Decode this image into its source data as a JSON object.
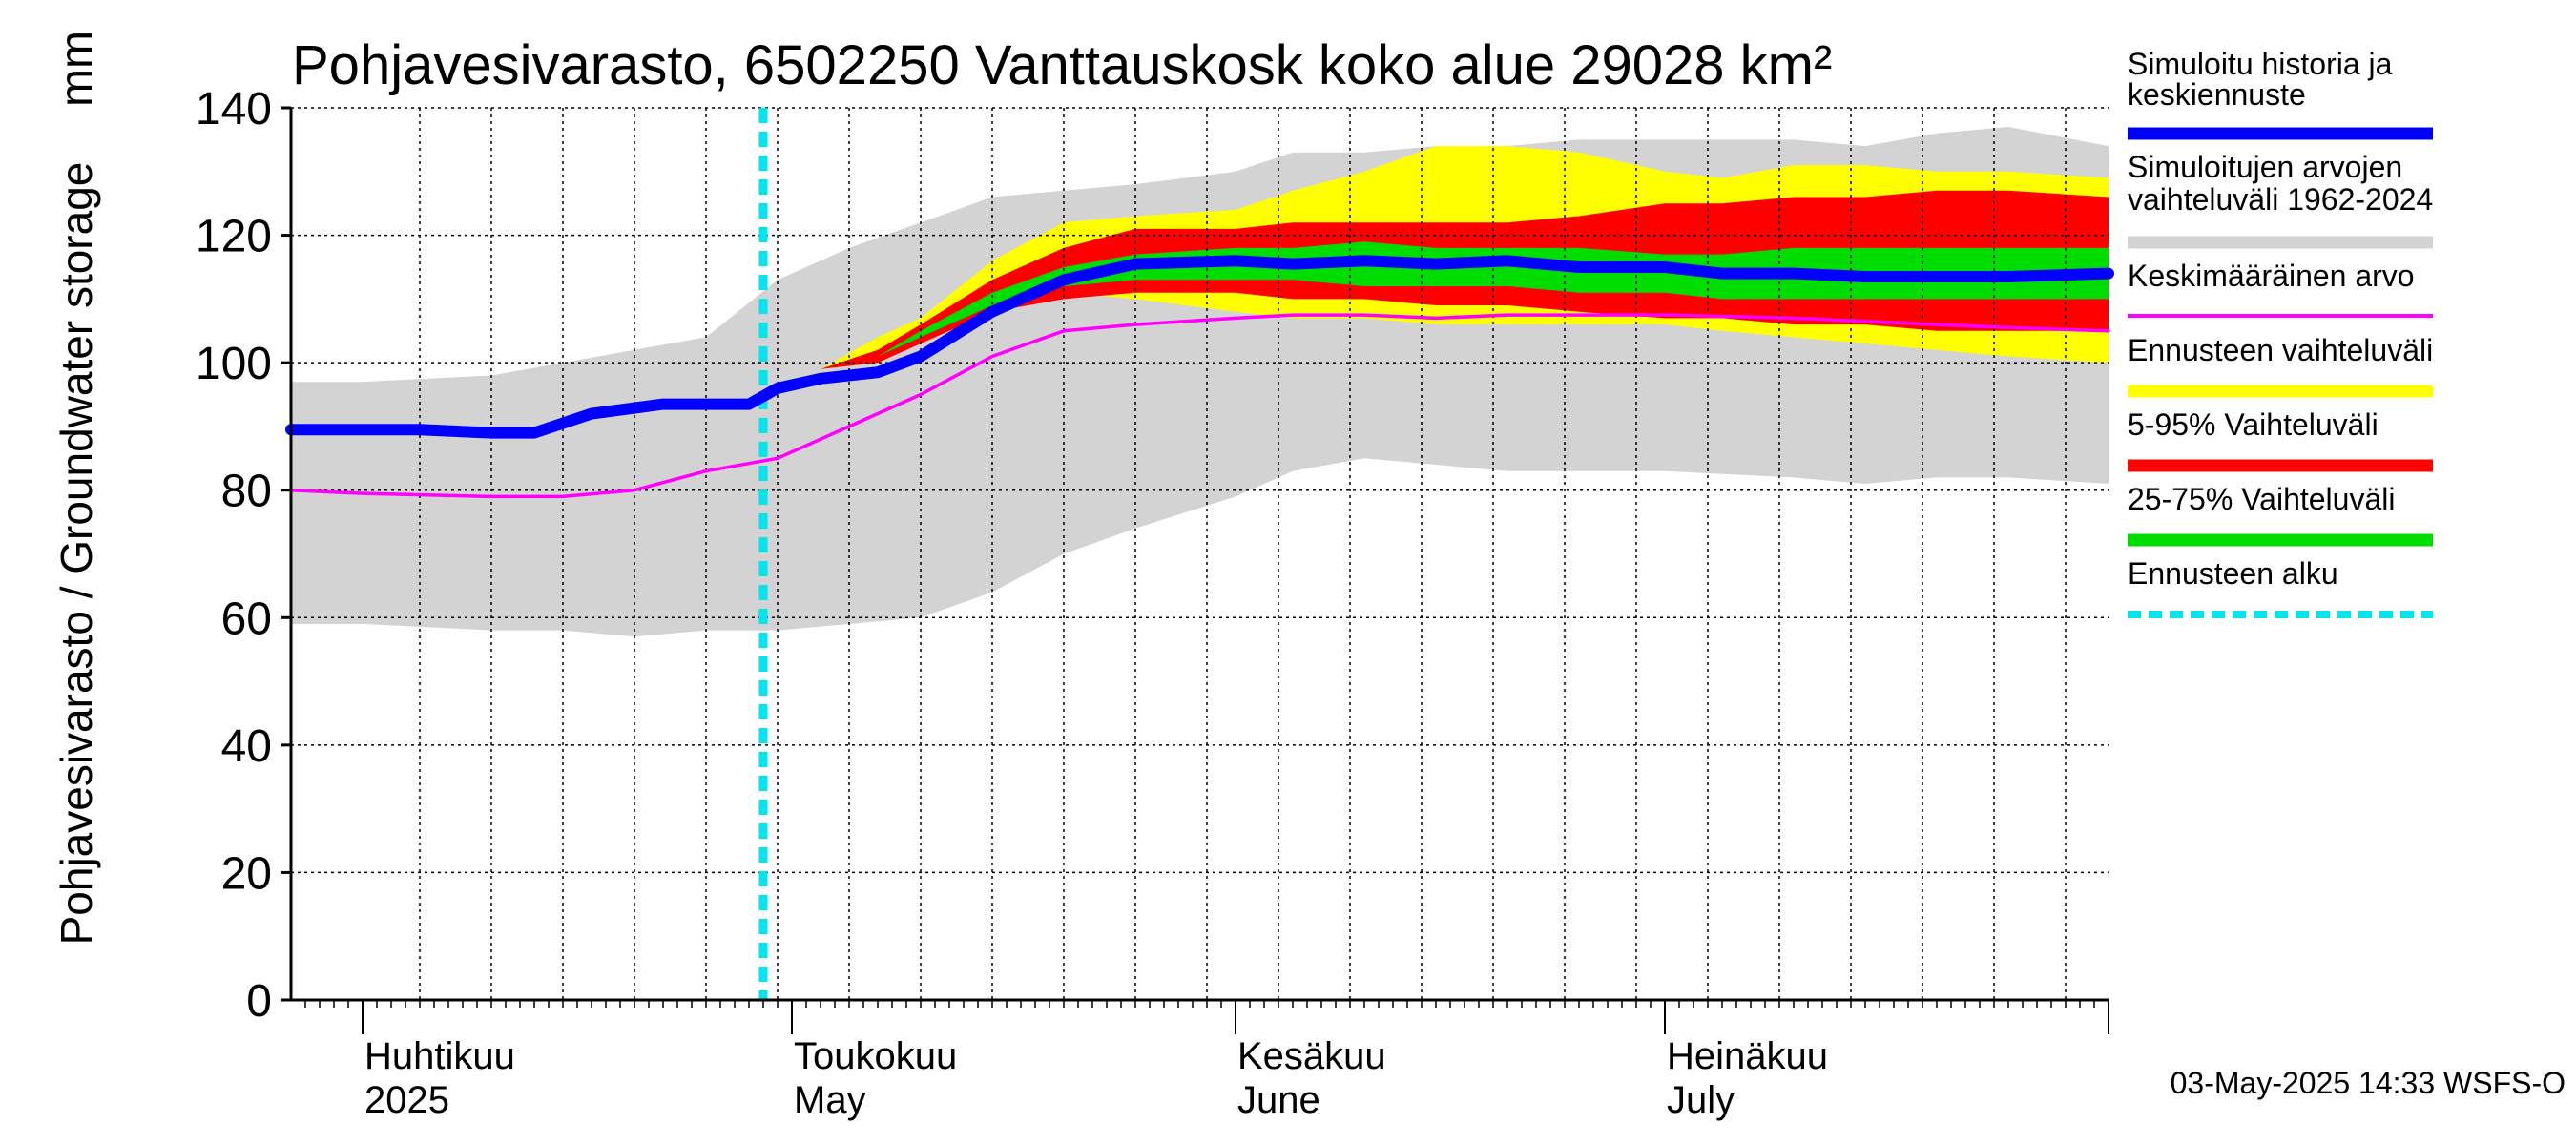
{
  "chart_data": {
    "type": "area",
    "title": "Pohjavesivarasto, 6502250 Vanttauskosk koko alue 29028 km²",
    "ylabel": "Pohjavesivarasto / Groundwater storage",
    "yunit": "mm",
    "ylim": [
      0,
      140
    ],
    "yticks": [
      0,
      20,
      40,
      60,
      80,
      100,
      120,
      140
    ],
    "xlim": [
      "2025-03-27",
      "2025-08-01"
    ],
    "grid": true,
    "legend_position": "right",
    "month_labels": [
      {
        "date": "2025-04-01",
        "fi": "Huhtikuu",
        "en": "2025"
      },
      {
        "date": "2025-05-01",
        "fi": "Toukokuu",
        "en": "May"
      },
      {
        "date": "2025-06-01",
        "fi": "Kesäkuu",
        "en": "June"
      },
      {
        "date": "2025-07-01",
        "fi": "Heinäkuu",
        "en": "July"
      }
    ],
    "forecast_start": "2025-04-29",
    "timestamp": "03-May-2025 14:33 WSFS-O",
    "legend": [
      {
        "label": "Simuloitu historia ja keskiennuste",
        "color": "#0000ff",
        "style": "thick"
      },
      {
        "label": "Simuloitujen arvojen vaihteluväli 1962-2024",
        "color": "#d3d3d3",
        "style": "band"
      },
      {
        "label": "Keskimääräinen arvo",
        "color": "#ff00ff",
        "style": "thin"
      },
      {
        "label": "Ennusteen vaihteluväli",
        "color": "#ffff00",
        "style": "band"
      },
      {
        "label": "5-95% Vaihteluväli",
        "color": "#ff0000",
        "style": "band"
      },
      {
        "label": "25-75% Vaihteluväli",
        "color": "#00dd00",
        "style": "band"
      },
      {
        "label": "Ennusteen alku",
        "color": "#00e5ee",
        "style": "dashed"
      }
    ],
    "series": [
      {
        "name": "Simuloitujen arvojen vaihteluväli 1962-2024",
        "kind": "band",
        "color": "#d3d3d3",
        "x": [
          "2025-03-27",
          "2025-04-01",
          "2025-04-10",
          "2025-04-15",
          "2025-04-20",
          "2025-04-25",
          "2025-04-30",
          "2025-05-05",
          "2025-05-10",
          "2025-05-15",
          "2025-05-20",
          "2025-05-25",
          "2025-06-01",
          "2025-06-05",
          "2025-06-10",
          "2025-06-15",
          "2025-06-20",
          "2025-06-25",
          "2025-07-01",
          "2025-07-10",
          "2025-07-15",
          "2025-07-20",
          "2025-07-25",
          "2025-08-01"
        ],
        "low": [
          59,
          59,
          58,
          58,
          57,
          58,
          58,
          59,
          60,
          64,
          70,
          74,
          79,
          83,
          85,
          84,
          83,
          83,
          83,
          82,
          81,
          82,
          82,
          81
        ],
        "high": [
          97,
          97,
          98,
          100,
          102,
          104,
          113,
          118,
          122,
          126,
          127,
          128,
          130,
          133,
          133,
          134,
          134,
          135,
          135,
          135,
          134,
          136,
          137,
          134
        ]
      },
      {
        "name": "Ennusteen vaihteluväli",
        "kind": "band",
        "color": "#ffff00",
        "x": [
          "2025-05-03",
          "2025-05-07",
          "2025-05-10",
          "2025-05-15",
          "2025-05-20",
          "2025-05-25",
          "2025-06-01",
          "2025-06-05",
          "2025-06-10",
          "2025-06-15",
          "2025-06-20",
          "2025-06-25",
          "2025-07-01",
          "2025-07-05",
          "2025-07-10",
          "2025-07-15",
          "2025-07-20",
          "2025-07-25",
          "2025-08-01"
        ],
        "low": [
          99,
          102,
          105,
          110,
          111,
          110,
          108,
          107,
          107,
          106,
          106,
          106,
          106,
          105,
          104,
          103,
          102,
          101,
          100
        ],
        "high": [
          99,
          104,
          107,
          116,
          122,
          123,
          124,
          127,
          130,
          134,
          134,
          133,
          130,
          129,
          131,
          131,
          130,
          130,
          129
        ]
      },
      {
        "name": "5-95% Vaihteluväli",
        "kind": "band",
        "color": "#ff0000",
        "x": [
          "2025-05-03",
          "2025-05-07",
          "2025-05-10",
          "2025-05-15",
          "2025-05-20",
          "2025-05-25",
          "2025-06-01",
          "2025-06-05",
          "2025-06-10",
          "2025-06-15",
          "2025-06-20",
          "2025-06-25",
          "2025-07-01",
          "2025-07-05",
          "2025-07-10",
          "2025-07-15",
          "2025-07-20",
          "2025-07-25",
          "2025-08-01"
        ],
        "low": [
          99,
          100,
          103,
          108,
          110,
          111,
          111,
          110,
          110,
          109,
          109,
          108,
          107,
          107,
          106,
          106,
          105,
          105,
          105
        ],
        "high": [
          99,
          102,
          106,
          113,
          118,
          121,
          121,
          122,
          122,
          122,
          122,
          123,
          125,
          125,
          126,
          126,
          127,
          127,
          126
        ]
      },
      {
        "name": "25-75% Vaihteluväli",
        "kind": "band",
        "color": "#00dd00",
        "x": [
          "2025-05-03",
          "2025-05-07",
          "2025-05-10",
          "2025-05-15",
          "2025-05-20",
          "2025-05-25",
          "2025-06-01",
          "2025-06-05",
          "2025-06-10",
          "2025-06-15",
          "2025-06-20",
          "2025-06-25",
          "2025-07-01",
          "2025-07-05",
          "2025-07-10",
          "2025-07-15",
          "2025-07-20",
          "2025-07-25",
          "2025-08-01"
        ],
        "low": [
          99,
          101,
          104,
          109,
          112,
          113,
          113,
          113,
          112,
          112,
          112,
          111,
          111,
          110,
          110,
          110,
          110,
          110,
          110
        ],
        "high": [
          99,
          101,
          105,
          111,
          115,
          117,
          118,
          118,
          119,
          118,
          118,
          118,
          117,
          117,
          118,
          118,
          118,
          118,
          118
        ]
      },
      {
        "name": "Keskimääräinen arvo",
        "kind": "line",
        "color": "#ff00ff",
        "x": [
          "2025-03-27",
          "2025-04-01",
          "2025-04-10",
          "2025-04-15",
          "2025-04-20",
          "2025-04-25",
          "2025-04-30",
          "2025-05-05",
          "2025-05-10",
          "2025-05-15",
          "2025-05-20",
          "2025-05-25",
          "2025-06-01",
          "2025-06-05",
          "2025-06-10",
          "2025-06-15",
          "2025-06-20",
          "2025-06-25",
          "2025-07-01",
          "2025-07-10",
          "2025-07-15",
          "2025-07-20",
          "2025-07-25",
          "2025-08-01"
        ],
        "y": [
          80,
          79.5,
          79,
          79,
          80,
          83,
          85,
          90,
          95,
          101,
          105,
          106,
          107,
          107.5,
          107.5,
          107,
          107.5,
          107.5,
          107.5,
          107,
          106.5,
          106,
          105.5,
          105
        ]
      },
      {
        "name": "Simuloitu historia ja keskiennuste",
        "kind": "line",
        "color": "#0000ff",
        "x": [
          "2025-03-27",
          "2025-04-01",
          "2025-04-05",
          "2025-04-10",
          "2025-04-13",
          "2025-04-17",
          "2025-04-22",
          "2025-04-25",
          "2025-04-28",
          "2025-04-30",
          "2025-05-03",
          "2025-05-07",
          "2025-05-10",
          "2025-05-15",
          "2025-05-20",
          "2025-05-25",
          "2025-06-01",
          "2025-06-05",
          "2025-06-10",
          "2025-06-15",
          "2025-06-20",
          "2025-06-25",
          "2025-07-01",
          "2025-07-05",
          "2025-07-10",
          "2025-07-15",
          "2025-07-20",
          "2025-07-25",
          "2025-08-01"
        ],
        "y": [
          89.5,
          89.5,
          89.5,
          89,
          89,
          92,
          93.5,
          93.5,
          93.5,
          96,
          97.5,
          98.5,
          101,
          108,
          113,
          115.5,
          116,
          115.5,
          116,
          115.5,
          116,
          115,
          115,
          114,
          114,
          113.5,
          113.5,
          113.5,
          114
        ]
      }
    ]
  }
}
